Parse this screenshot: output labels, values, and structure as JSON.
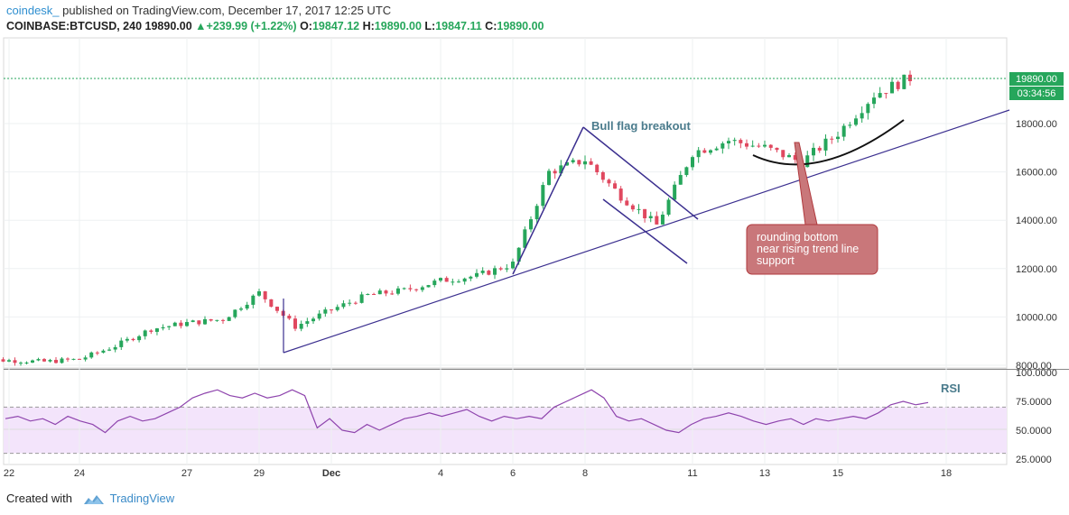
{
  "header": {
    "brand": "coindesk_",
    "published": "published on TradingView.com, December 17, 2017 12:25 UTC",
    "symbol": "COINBASE:BTCUSD, 240",
    "last": "19890.00",
    "change": "+239.99 (+1.22%)",
    "o_label": "O:",
    "o": "19847.12",
    "h_label": "H:",
    "h": "19890.00",
    "l_label": "L:",
    "l": "19847.11",
    "c_label": "C:",
    "c": "19890.00"
  },
  "price_label": {
    "value": "19890.00",
    "countdown": "03:34:56"
  },
  "annotations": {
    "bull_flag": "Bull flag breakout",
    "rounding": [
      "rounding bottom",
      "near rising trend line",
      "support"
    ],
    "rsi": "RSI"
  },
  "footer": {
    "created": "Created with",
    "brand": "TradingView"
  },
  "colors": {
    "up": "#26a65b",
    "down": "#e0485f",
    "trend": "#3b2f8f",
    "rsi": "#8e44ad",
    "callout": "#c9777a"
  },
  "chart_data": [
    {
      "type": "candlestick",
      "title": "COINBASE:BTCUSD, 240",
      "x_ticks": [
        "22",
        "24",
        "27",
        "29",
        "Dec",
        "4",
        "6",
        "8",
        "11",
        "13",
        "15",
        "18"
      ],
      "y_ticks": [
        "8000.00",
        "10000.00",
        "12000.00",
        "14000.00",
        "16000.00",
        "18000.00"
      ],
      "ylim": [
        8000,
        19890
      ],
      "last_price": 19890.0,
      "close_path": [
        {
          "date": "2017-11-21",
          "close": 8250
        },
        {
          "date": "2017-11-23",
          "close": 8150
        },
        {
          "date": "2017-11-24",
          "close": 8250
        },
        {
          "date": "2017-11-25",
          "close": 8800
        },
        {
          "date": "2017-11-26",
          "close": 9500
        },
        {
          "date": "2017-11-27",
          "close": 9750
        },
        {
          "date": "2017-11-28",
          "close": 9900
        },
        {
          "date": "2017-11-29",
          "close": 11000
        },
        {
          "date": "2017-11-30",
          "close": 9600
        },
        {
          "date": "2017-12-01",
          "close": 10300
        },
        {
          "date": "2017-12-02",
          "close": 10900
        },
        {
          "date": "2017-12-03",
          "close": 11100
        },
        {
          "date": "2017-12-04",
          "close": 11500
        },
        {
          "date": "2017-12-05",
          "close": 11700
        },
        {
          "date": "2017-12-06",
          "close": 12200
        },
        {
          "date": "2017-12-07",
          "close": 16000
        },
        {
          "date": "2017-12-08",
          "close": 16500
        },
        {
          "date": "2017-12-09",
          "close": 15000
        },
        {
          "date": "2017-12-10",
          "close": 13800
        },
        {
          "date": "2017-12-11",
          "close": 16800
        },
        {
          "date": "2017-12-12",
          "close": 17300
        },
        {
          "date": "2017-12-13",
          "close": 17000
        },
        {
          "date": "2017-12-14",
          "close": 16400
        },
        {
          "date": "2017-12-15",
          "close": 17600
        },
        {
          "date": "2017-12-16",
          "close": 19200
        },
        {
          "date": "2017-12-17",
          "close": 19890
        }
      ]
    },
    {
      "type": "line",
      "title": "RSI",
      "y_ticks": [
        "25.0000",
        "50.0000",
        "75.0000",
        "100.0000"
      ],
      "ylim": [
        20,
        100
      ],
      "band": [
        30,
        70
      ],
      "values": [
        60,
        62,
        58,
        60,
        55,
        62,
        58,
        55,
        48,
        58,
        62,
        58,
        60,
        65,
        70,
        78,
        82,
        85,
        80,
        78,
        82,
        78,
        80,
        85,
        80,
        52,
        60,
        50,
        48,
        55,
        50,
        55,
        60,
        62,
        65,
        62,
        65,
        68,
        62,
        58,
        62,
        60,
        62,
        60,
        70,
        75,
        80,
        85,
        78,
        62,
        58,
        60,
        55,
        50,
        48,
        55,
        60,
        62,
        65,
        62,
        58,
        55,
        58,
        60,
        55,
        60,
        58,
        60,
        62,
        60,
        65,
        72,
        75,
        72,
        74
      ]
    }
  ]
}
